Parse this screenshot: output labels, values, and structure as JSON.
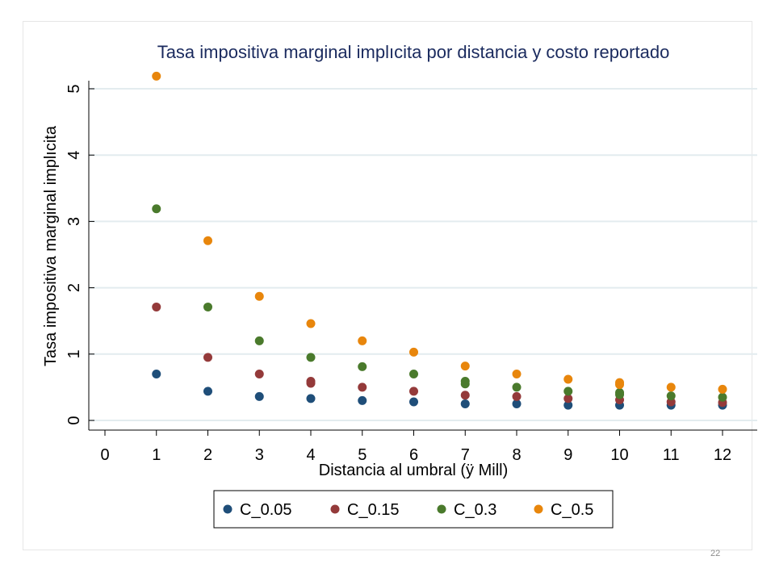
{
  "page_number": "22",
  "chart_data": {
    "type": "scatter",
    "title": "Tasa impositiva marginal implıcita por distancia y costo reportado",
    "xlabel": "Distancia al umbral (ÿ Mill)",
    "ylabel": "Tasa impositiva marginal implıcita",
    "x_ticks": [
      "0",
      "1",
      "2",
      "3",
      "4",
      "5",
      "6",
      "7",
      "8",
      "9",
      "10",
      "11",
      "12"
    ],
    "y_ticks": [
      "0",
      "1",
      "2",
      "3",
      "4",
      "5"
    ],
    "xlim": [
      0,
      12
    ],
    "ylim": [
      0,
      5
    ],
    "grid": true,
    "legend_position": "bottom",
    "series": [
      {
        "name": "C_0.05",
        "color": "#1f4e79",
        "points": [
          [
            1,
            0.7
          ],
          [
            2,
            0.44
          ],
          [
            3,
            0.36
          ],
          [
            4,
            0.33
          ],
          [
            5,
            0.3
          ],
          [
            6,
            0.28
          ],
          [
            7,
            0.25
          ],
          [
            8,
            0.25
          ],
          [
            9,
            0.23
          ],
          [
            10,
            0.23
          ],
          [
            11,
            0.23
          ],
          [
            12,
            0.23
          ]
        ]
      },
      {
        "name": "C_0.15",
        "color": "#943a3a",
        "points": [
          [
            1,
            1.71
          ],
          [
            2,
            0.95
          ],
          [
            3,
            0.7
          ],
          [
            4,
            0.56
          ],
          [
            4,
            0.59
          ],
          [
            5,
            0.5
          ],
          [
            6,
            0.44
          ],
          [
            7,
            0.38
          ],
          [
            8,
            0.36
          ],
          [
            9,
            0.33
          ],
          [
            10,
            0.31
          ],
          [
            11,
            0.28
          ],
          [
            12,
            0.27
          ]
        ]
      },
      {
        "name": "C_0.3",
        "color": "#4a7a2c",
        "points": [
          [
            1,
            3.19
          ],
          [
            2,
            1.71
          ],
          [
            3,
            1.2
          ],
          [
            4,
            0.95
          ],
          [
            5,
            0.81
          ],
          [
            6,
            0.7
          ],
          [
            7,
            0.55
          ],
          [
            7,
            0.59
          ],
          [
            8,
            0.5
          ],
          [
            9,
            0.44
          ],
          [
            10,
            0.39
          ],
          [
            10,
            0.42
          ],
          [
            11,
            0.37
          ],
          [
            12,
            0.35
          ]
        ]
      },
      {
        "name": "C_0.5",
        "color": "#e8860c",
        "points": [
          [
            1,
            5.19
          ],
          [
            2,
            2.71
          ],
          [
            3,
            1.87
          ],
          [
            4,
            1.46
          ],
          [
            5,
            1.2
          ],
          [
            6,
            1.03
          ],
          [
            7,
            0.82
          ],
          [
            8,
            0.7
          ],
          [
            9,
            0.62
          ],
          [
            10,
            0.54
          ],
          [
            10,
            0.57
          ],
          [
            11,
            0.5
          ],
          [
            12,
            0.47
          ]
        ]
      }
    ]
  }
}
